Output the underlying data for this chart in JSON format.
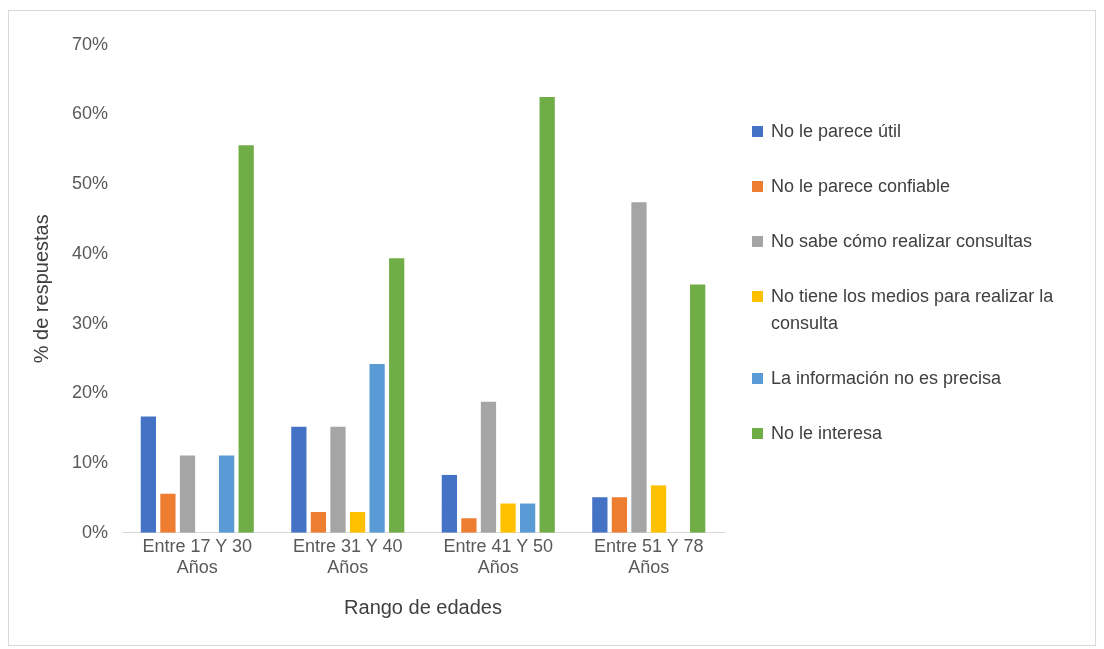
{
  "chart_data": {
    "type": "bar",
    "xlabel": "Rango de edades",
    "ylabel": "% de respuestas",
    "categories": [
      "Entre 17 Y 30 Años",
      "Entre 31 Y 40 Años",
      "Entre 41 Y 50 Años",
      "Entre 51 Y 78 Años"
    ],
    "series": [
      {
        "name": "No le parece útil",
        "color": "#4472c4",
        "values": [
          16.7,
          15.2,
          8.3,
          5.1
        ]
      },
      {
        "name": "No le parece confiable",
        "color": "#ed7d31",
        "values": [
          5.6,
          3.0,
          2.1,
          5.1
        ]
      },
      {
        "name": "No sabe cómo realizar consultas",
        "color": "#a5a5a5",
        "values": [
          11.1,
          15.2,
          18.8,
          47.4
        ]
      },
      {
        "name": "No tiene los medios para realizar la consulta",
        "color": "#ffc000",
        "values": [
          0,
          3.0,
          4.2,
          6.8
        ]
      },
      {
        "name": "La información no es precisa",
        "color": "#5b9bd5",
        "values": [
          11.1,
          24.2,
          4.2,
          0
        ]
      },
      {
        "name": "No le interesa",
        "color": "#70ad47",
        "values": [
          55.6,
          39.4,
          62.5,
          35.6
        ]
      }
    ],
    "ylim": [
      0,
      70
    ],
    "yticks": [
      {
        "value": 0,
        "label": "0%"
      },
      {
        "value": 10,
        "label": "10%"
      },
      {
        "value": 20,
        "label": "20%"
      },
      {
        "value": 30,
        "label": "30%"
      },
      {
        "value": 40,
        "label": "40%"
      },
      {
        "value": 50,
        "label": "50%"
      },
      {
        "value": 60,
        "label": "60%"
      },
      {
        "value": 70,
        "label": "70%"
      }
    ],
    "grid": false,
    "legend": "right"
  }
}
